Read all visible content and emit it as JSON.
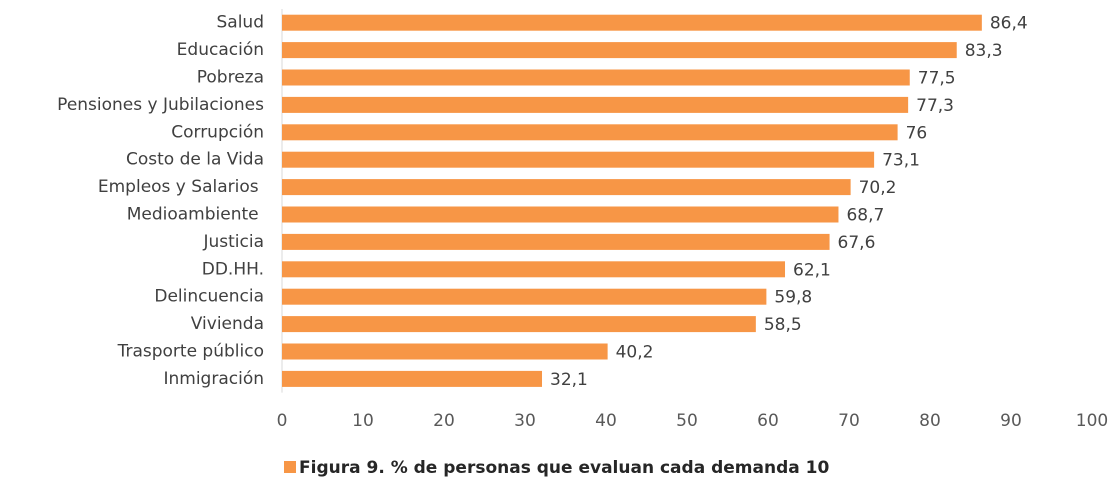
{
  "chart_data": {
    "type": "bar",
    "orientation": "horizontal",
    "categories": [
      "Salud",
      "Educación",
      "Pobreza",
      "Pensiones y Jubilaciones",
      "Corrupción",
      "Costo de la Vida",
      "Empleos y Salarios ",
      "Medioambiente ",
      "Justicia",
      "DD.HH.",
      "Delincuencia",
      "Vivienda",
      "Trasporte público",
      "Inmigración"
    ],
    "series": [
      {
        "name": "Figura 9. % de personas que evaluan cada demanda 10",
        "color": "#f79646",
        "values": [
          86.4,
          83.3,
          77.5,
          77.3,
          76,
          73.1,
          70.2,
          68.7,
          67.6,
          62.1,
          59.8,
          58.5,
          40.2,
          32.1
        ],
        "value_labels": [
          "86,4",
          "83,3",
          "77,5",
          "77,3",
          "76",
          "73,1",
          "70,2",
          "68,7",
          "67,6",
          "62,1",
          "59,8",
          "58,5",
          "40,2",
          "32,1"
        ]
      }
    ],
    "xlim": [
      0,
      100
    ],
    "xticks": [
      0,
      10,
      20,
      30,
      40,
      50,
      60,
      70,
      80,
      90,
      100
    ],
    "grid": false,
    "legend": "bottom"
  }
}
